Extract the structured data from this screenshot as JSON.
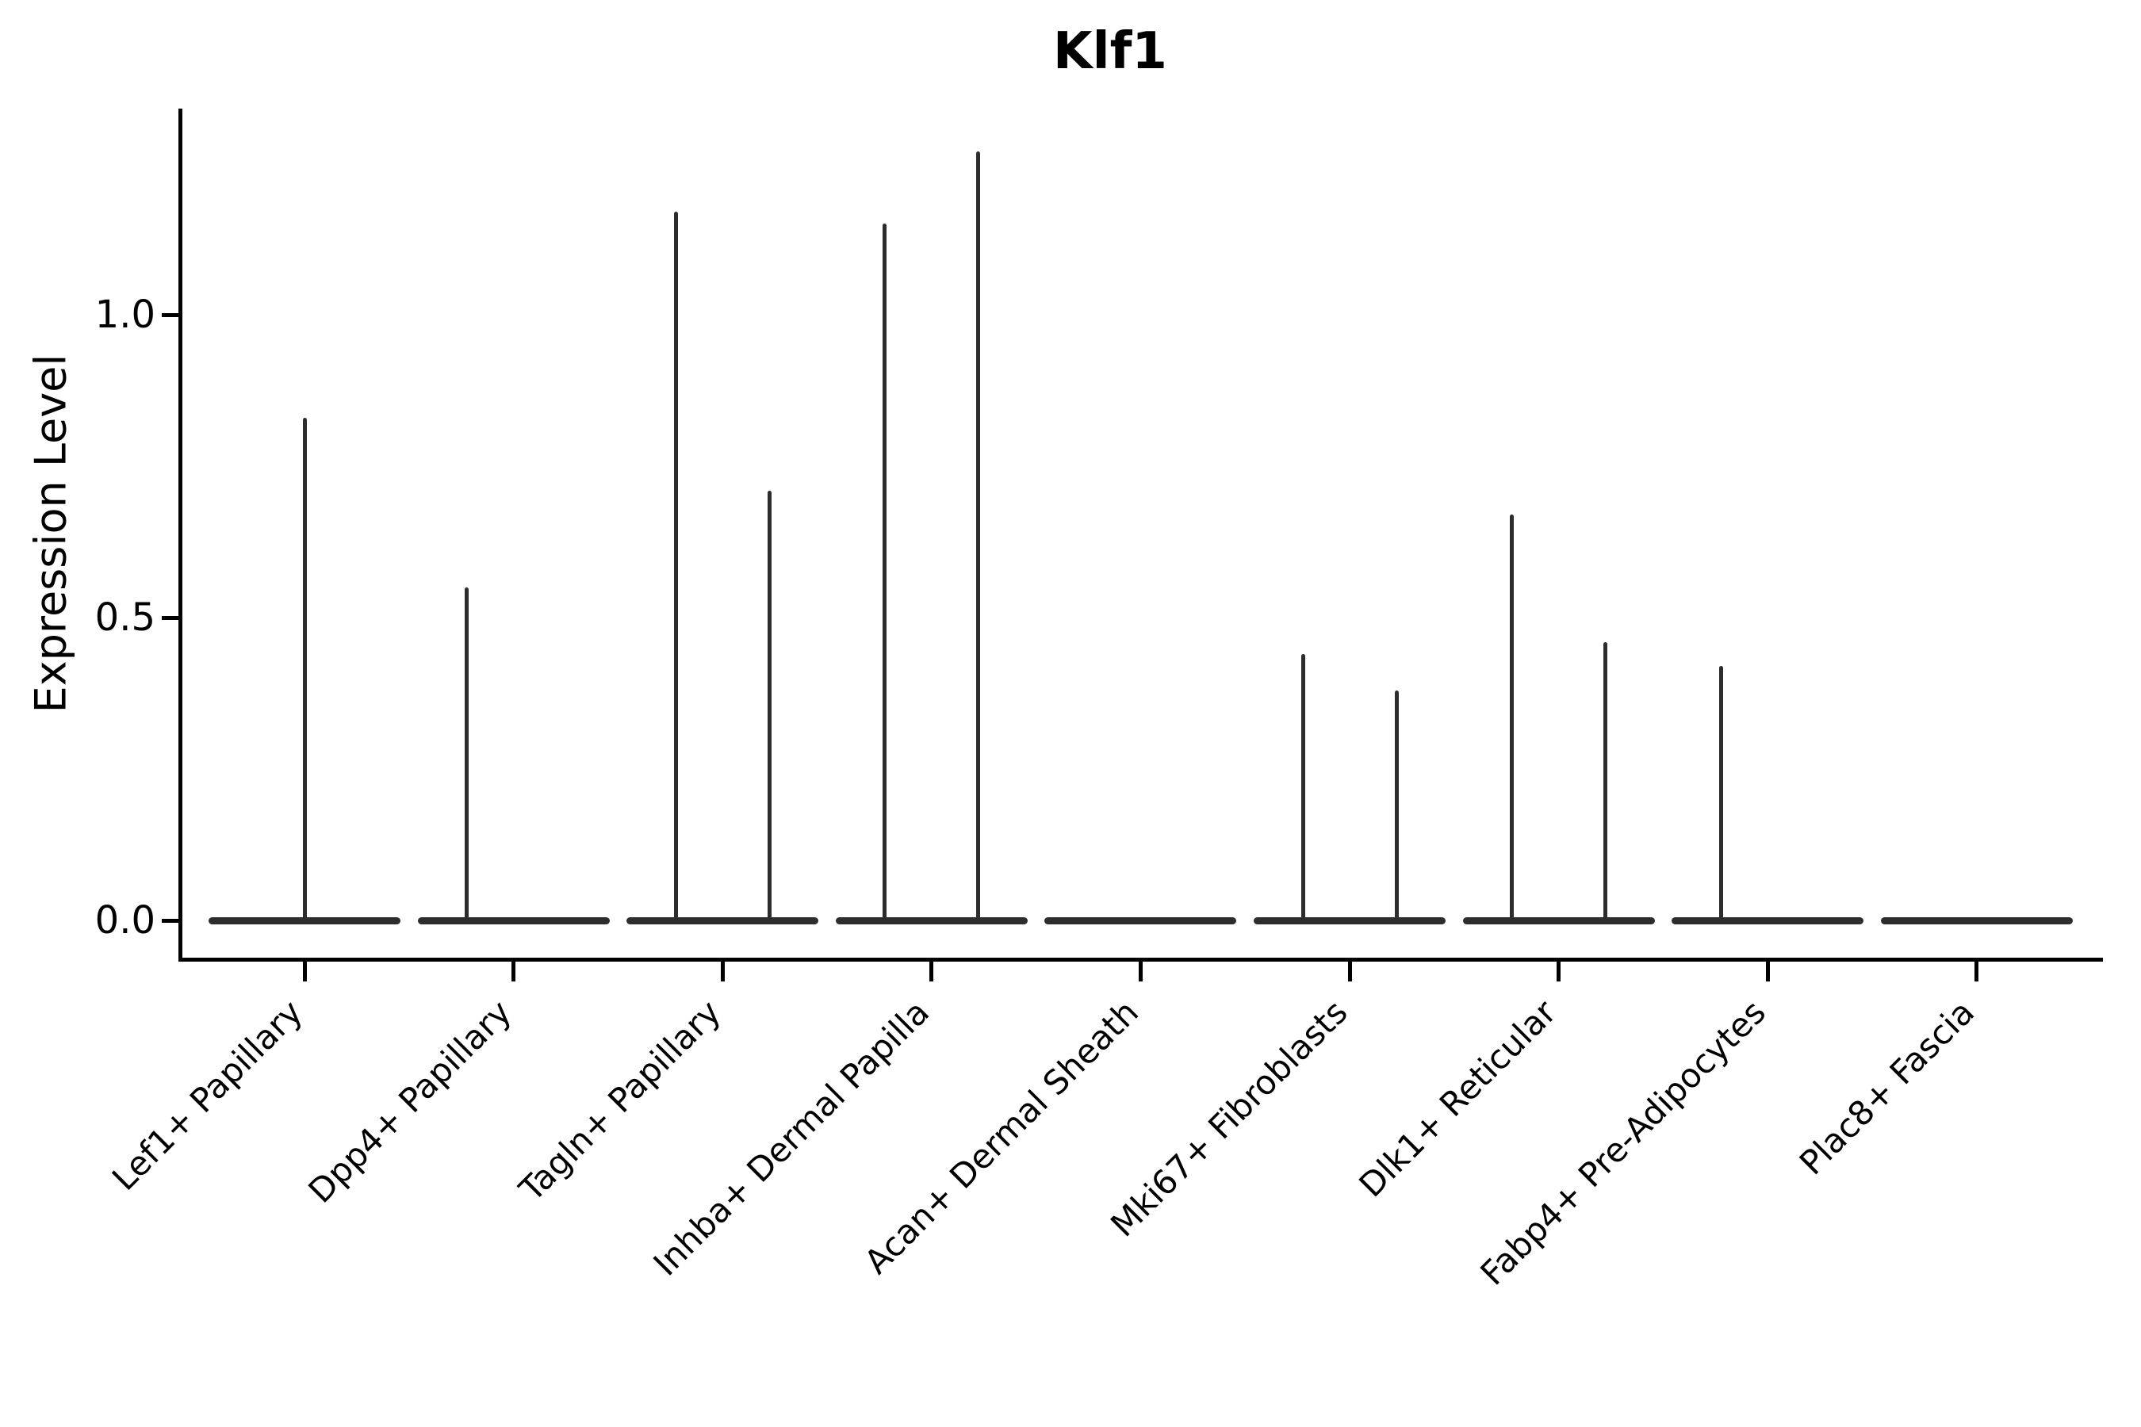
{
  "chart_data": {
    "type": "violin",
    "title": "Klf1",
    "xlabel": "",
    "ylabel": "Expression Level",
    "yticks": [
      0.0,
      0.5,
      1.0
    ],
    "ylim": [
      -0.07,
      1.35
    ],
    "grid": false,
    "legend": "none",
    "categories": [
      "Lef1+ Papillary",
      "Dpp4+ Papillary",
      "Tagln+ Papillary",
      "Inhba+ Dermal Papilla",
      "Acan+ Dermal Sheath",
      "Mki67+ Fibroblasts",
      "Dlk1+ Reticular",
      "Fabp4+ Pre-Adipocytes",
      "Plac8+ Fascia"
    ],
    "violins": [
      {
        "category": "Lef1+ Papillary",
        "baseline_at_zero": true,
        "spikes": [
          {
            "position": "center",
            "max": 0.83
          }
        ]
      },
      {
        "category": "Dpp4+ Papillary",
        "baseline_at_zero": true,
        "spikes": [
          {
            "position": "left",
            "max": 0.55
          }
        ]
      },
      {
        "category": "Tagln+ Papillary",
        "baseline_at_zero": true,
        "spikes": [
          {
            "position": "left",
            "max": 1.17
          },
          {
            "position": "right",
            "max": 0.71
          }
        ]
      },
      {
        "category": "Inhba+ Dermal Papilla",
        "baseline_at_zero": true,
        "spikes": [
          {
            "position": "left",
            "max": 1.15
          },
          {
            "position": "right",
            "max": 1.27
          }
        ]
      },
      {
        "category": "Acan+ Dermal Sheath",
        "baseline_at_zero": true,
        "spikes": []
      },
      {
        "category": "Mki67+ Fibroblasts",
        "baseline_at_zero": true,
        "spikes": [
          {
            "position": "left",
            "max": 0.44
          },
          {
            "position": "right",
            "max": 0.38
          }
        ]
      },
      {
        "category": "Dlk1+ Reticular",
        "baseline_at_zero": true,
        "spikes": [
          {
            "position": "left",
            "max": 0.67
          },
          {
            "position": "right",
            "max": 0.46
          }
        ]
      },
      {
        "category": "Fabp4+ Pre-Adipocytes",
        "baseline_at_zero": true,
        "spikes": [
          {
            "position": "left",
            "max": 0.42
          }
        ]
      },
      {
        "category": "Plac8+ Fascia",
        "baseline_at_zero": true,
        "spikes": []
      }
    ],
    "style": {
      "violin_line_color": "#2d2d2d",
      "spine_color": "#000000",
      "text_color": "#000000",
      "background": "#ffffff"
    }
  }
}
